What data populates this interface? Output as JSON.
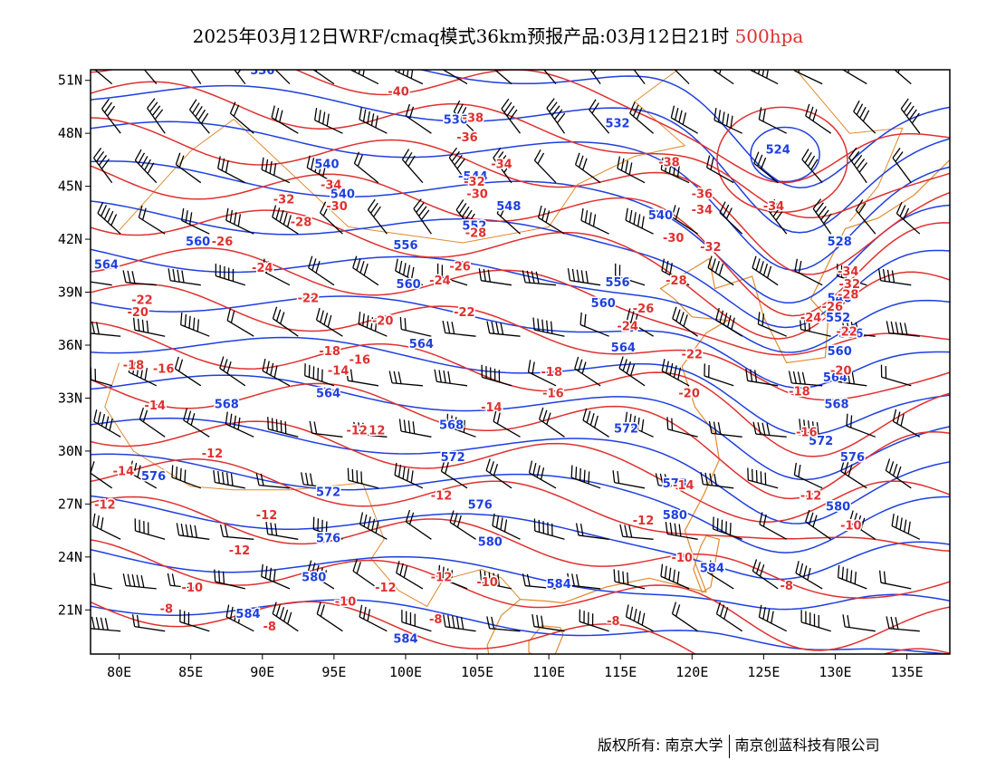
{
  "title": {
    "main": "2025年03月12日WRF/cmaq模式36km预报产品:03月12日21时",
    "level": "500hpa"
  },
  "colors": {
    "height_contour": "#1f3fe0",
    "temperature_contour": "#e03030",
    "coastline_border": "#e08a30",
    "wind_barb": "#000000",
    "frame": "#000000"
  },
  "axes": {
    "lat_labels": [
      "51N",
      "48N",
      "45N",
      "42N",
      "39N",
      "36N",
      "33N",
      "30N",
      "27N",
      "24N",
      "21N"
    ],
    "lat_values": [
      51,
      48,
      45,
      42,
      39,
      36,
      33,
      30,
      27,
      24,
      21
    ],
    "lon_labels": [
      "80E",
      "85E",
      "90E",
      "95E",
      "100E",
      "105E",
      "110E",
      "115E",
      "120E",
      "125E",
      "130E",
      "135E"
    ],
    "lon_values": [
      80,
      85,
      90,
      95,
      100,
      105,
      110,
      115,
      120,
      125,
      130,
      135
    ],
    "lon_range": [
      78,
      138
    ],
    "lat_range": [
      18.5,
      51.6
    ]
  },
  "height_labels": [
    {
      "text": "536",
      "lon": 90,
      "lat": 51.6
    },
    {
      "text": "536",
      "lon": 103.5,
      "lat": 48.8
    },
    {
      "text": "532",
      "lon": 114.8,
      "lat": 48.6
    },
    {
      "text": "524",
      "lon": 126,
      "lat": 47.1
    },
    {
      "text": "540",
      "lon": 94.5,
      "lat": 46.3
    },
    {
      "text": "-544",
      "lon": 104.7,
      "lat": 45.6
    },
    {
      "text": "540",
      "lon": 95.6,
      "lat": 44.6
    },
    {
      "text": "548",
      "lon": 107.2,
      "lat": 43.9
    },
    {
      "text": "552",
      "lon": 104.8,
      "lat": 42.8
    },
    {
      "text": "540",
      "lon": 117.8,
      "lat": 43.4
    },
    {
      "text": "556",
      "lon": 100,
      "lat": 41.7
    },
    {
      "text": "560",
      "lon": 85.5,
      "lat": 41.9
    },
    {
      "text": "564",
      "lon": 79.1,
      "lat": 40.6
    },
    {
      "text": "560",
      "lon": 100.2,
      "lat": 39.5
    },
    {
      "text": "560",
      "lon": 113.8,
      "lat": 38.4
    },
    {
      "text": "556",
      "lon": 114.8,
      "lat": 39.6
    },
    {
      "text": "564",
      "lon": 101.1,
      "lat": 36.1
    },
    {
      "text": "564",
      "lon": 115.2,
      "lat": 35.9
    },
    {
      "text": "568",
      "lon": 87.5,
      "lat": 32.7
    },
    {
      "text": "564",
      "lon": 94.6,
      "lat": 33.3
    },
    {
      "text": "568",
      "lon": 103.2,
      "lat": 31.5
    },
    {
      "text": "572",
      "lon": 115.4,
      "lat": 31.3
    },
    {
      "text": "572",
      "lon": 103.3,
      "lat": 29.7
    },
    {
      "text": "576",
      "lon": 82.4,
      "lat": 28.6
    },
    {
      "text": "572",
      "lon": 94.6,
      "lat": 27.7
    },
    {
      "text": "576",
      "lon": 105.2,
      "lat": 27.0
    },
    {
      "text": "576",
      "lon": 94.6,
      "lat": 25.1
    },
    {
      "text": "580",
      "lon": 105.9,
      "lat": 24.9
    },
    {
      "text": "580",
      "lon": 118.8,
      "lat": 26.4
    },
    {
      "text": "580",
      "lon": 93.6,
      "lat": 22.9
    },
    {
      "text": "584",
      "lon": 89,
      "lat": 20.8
    },
    {
      "text": "584",
      "lon": 110.7,
      "lat": 22.5
    },
    {
      "text": "584",
      "lon": 121.4,
      "lat": 23.4
    },
    {
      "text": "584",
      "lon": 100,
      "lat": 19.4
    },
    {
      "text": "528",
      "lon": 130.3,
      "lat": 41.9
    },
    {
      "text": "540",
      "lon": 130.3,
      "lat": 38.7
    },
    {
      "text": "552",
      "lon": 130.2,
      "lat": 37.6
    },
    {
      "text": "556",
      "lon": 131.1,
      "lat": 36.7
    },
    {
      "text": "560",
      "lon": 130.3,
      "lat": 35.7
    },
    {
      "text": "564",
      "lon": 130,
      "lat": 34.2
    },
    {
      "text": "568",
      "lon": 130.1,
      "lat": 32.7
    },
    {
      "text": "572",
      "lon": 129,
      "lat": 30.6
    },
    {
      "text": "576",
      "lon": 131.2,
      "lat": 29.7
    },
    {
      "text": "580",
      "lon": 130.2,
      "lat": 26.9
    },
    {
      "text": "573",
      "lon": 118.8,
      "lat": 28.2
    }
  ],
  "temp_labels": [
    {
      "text": "-40",
      "lon": 99.5,
      "lat": 50.4
    },
    {
      "text": "-38",
      "lon": 104.7,
      "lat": 48.9
    },
    {
      "text": "-36",
      "lon": 104.3,
      "lat": 47.8
    },
    {
      "text": "-38",
      "lon": 118.4,
      "lat": 46.4
    },
    {
      "text": "-34",
      "lon": 106.7,
      "lat": 46.3
    },
    {
      "text": "-34",
      "lon": 94.8,
      "lat": 45.1
    },
    {
      "text": "-32",
      "lon": 104.8,
      "lat": 45.3
    },
    {
      "text": "-32",
      "lon": 91.5,
      "lat": 44.3
    },
    {
      "text": "-30",
      "lon": 105,
      "lat": 44.6
    },
    {
      "text": "-30",
      "lon": 95.2,
      "lat": 43.9
    },
    {
      "text": "-36",
      "lon": 120.7,
      "lat": 44.6
    },
    {
      "text": "-34",
      "lon": 120.7,
      "lat": 43.7
    },
    {
      "text": "-34",
      "lon": 125.7,
      "lat": 43.9
    },
    {
      "text": "-28",
      "lon": 92.7,
      "lat": 43.0
    },
    {
      "text": "-28",
      "lon": 104.9,
      "lat": 42.4
    },
    {
      "text": "-30",
      "lon": 118.7,
      "lat": 42.1
    },
    {
      "text": "-26",
      "lon": 87.2,
      "lat": 41.9
    },
    {
      "text": "-32",
      "lon": 121.3,
      "lat": 41.6
    },
    {
      "text": "-26",
      "lon": 103.8,
      "lat": 40.5
    },
    {
      "text": "-24",
      "lon": 90,
      "lat": 40.4
    },
    {
      "text": "-24",
      "lon": 102.4,
      "lat": 39.7
    },
    {
      "text": "-28",
      "lon": 118.9,
      "lat": 39.7
    },
    {
      "text": "-34",
      "lon": 130.9,
      "lat": 40.2
    },
    {
      "text": "-32",
      "lon": 131,
      "lat": 39.5
    },
    {
      "text": "-28",
      "lon": 130.9,
      "lat": 38.9
    },
    {
      "text": "-26",
      "lon": 129.8,
      "lat": 38.2
    },
    {
      "text": "-22",
      "lon": 81.6,
      "lat": 38.6
    },
    {
      "text": "-22",
      "lon": 93.2,
      "lat": 38.7
    },
    {
      "text": "-22",
      "lon": 104.1,
      "lat": 37.9
    },
    {
      "text": "-26",
      "lon": 116.6,
      "lat": 38.1
    },
    {
      "text": "-24",
      "lon": 128.3,
      "lat": 37.6
    },
    {
      "text": "-22",
      "lon": 130.8,
      "lat": 36.8
    },
    {
      "text": "-20",
      "lon": 81.3,
      "lat": 37.9
    },
    {
      "text": "-20",
      "lon": 98.4,
      "lat": 37.4
    },
    {
      "text": "-24",
      "lon": 115.5,
      "lat": 37.1
    },
    {
      "text": "-20",
      "lon": 130.4,
      "lat": 34.6
    },
    {
      "text": "-18",
      "lon": 81,
      "lat": 34.9
    },
    {
      "text": "-16",
      "lon": 83.1,
      "lat": 34.7
    },
    {
      "text": "-18",
      "lon": 94.7,
      "lat": 35.7
    },
    {
      "text": "-16",
      "lon": 96.8,
      "lat": 35.2
    },
    {
      "text": "-14",
      "lon": 95.3,
      "lat": 34.6
    },
    {
      "text": "-22",
      "lon": 120,
      "lat": 35.5
    },
    {
      "text": "-18",
      "lon": 110.2,
      "lat": 34.5
    },
    {
      "text": "-18",
      "lon": 127.5,
      "lat": 33.4
    },
    {
      "text": "-16",
      "lon": 110.3,
      "lat": 33.3
    },
    {
      "text": "-20",
      "lon": 119.8,
      "lat": 33.3
    },
    {
      "text": "-14",
      "lon": 82.5,
      "lat": 32.6
    },
    {
      "text": "-14",
      "lon": 106,
      "lat": 32.5
    },
    {
      "text": "-12",
      "lon": 96.6,
      "lat": 31.2
    },
    {
      "text": "12",
      "lon": 98,
      "lat": 31.2
    },
    {
      "text": "-16",
      "lon": 128,
      "lat": 31.1
    },
    {
      "text": "-12",
      "lon": 86.5,
      "lat": 29.9
    },
    {
      "text": "-14",
      "lon": 80.3,
      "lat": 28.9
    },
    {
      "text": "-14",
      "lon": 119.4,
      "lat": 28.1
    },
    {
      "text": "-12",
      "lon": 79,
      "lat": 27.0
    },
    {
      "text": "-12",
      "lon": 90.3,
      "lat": 26.4
    },
    {
      "text": "-12",
      "lon": 102.5,
      "lat": 27.5
    },
    {
      "text": "-12",
      "lon": 128.3,
      "lat": 27.5
    },
    {
      "text": "-12",
      "lon": 116.6,
      "lat": 26.1
    },
    {
      "text": "-10",
      "lon": 131.1,
      "lat": 25.8
    },
    {
      "text": "-12",
      "lon": 88.4,
      "lat": 24.4
    },
    {
      "text": "-10",
      "lon": 119.3,
      "lat": 24.0
    },
    {
      "text": "-12",
      "lon": 102.5,
      "lat": 22.9
    },
    {
      "text": "-10",
      "lon": 105.7,
      "lat": 22.6
    },
    {
      "text": "-12",
      "lon": 98.6,
      "lat": 22.3
    },
    {
      "text": "-10",
      "lon": 85.1,
      "lat": 22.3
    },
    {
      "text": "-10",
      "lon": 95.8,
      "lat": 21.5
    },
    {
      "text": "-8",
      "lon": 83.3,
      "lat": 21.1
    },
    {
      "text": "-8",
      "lon": 126.6,
      "lat": 22.4
    },
    {
      "text": "-8",
      "lon": 90.5,
      "lat": 20.1
    },
    {
      "text": "-8",
      "lon": 102.1,
      "lat": 20.5
    },
    {
      "text": "-8",
      "lon": 114.5,
      "lat": 20.4
    }
  ],
  "wind_barbs": {
    "lon_start": 79.5,
    "lon_step": 3.1,
    "lat_rows": [
      50.8,
      48,
      45.2,
      42.3,
      39.4,
      36.5,
      33.7,
      30.8,
      27.9,
      25.0,
      22.2,
      19.8
    ]
  },
  "footer": {
    "copyright_label": "版权所有:",
    "org1": "南京大学",
    "org2": "南京创蓝科技有限公司"
  }
}
